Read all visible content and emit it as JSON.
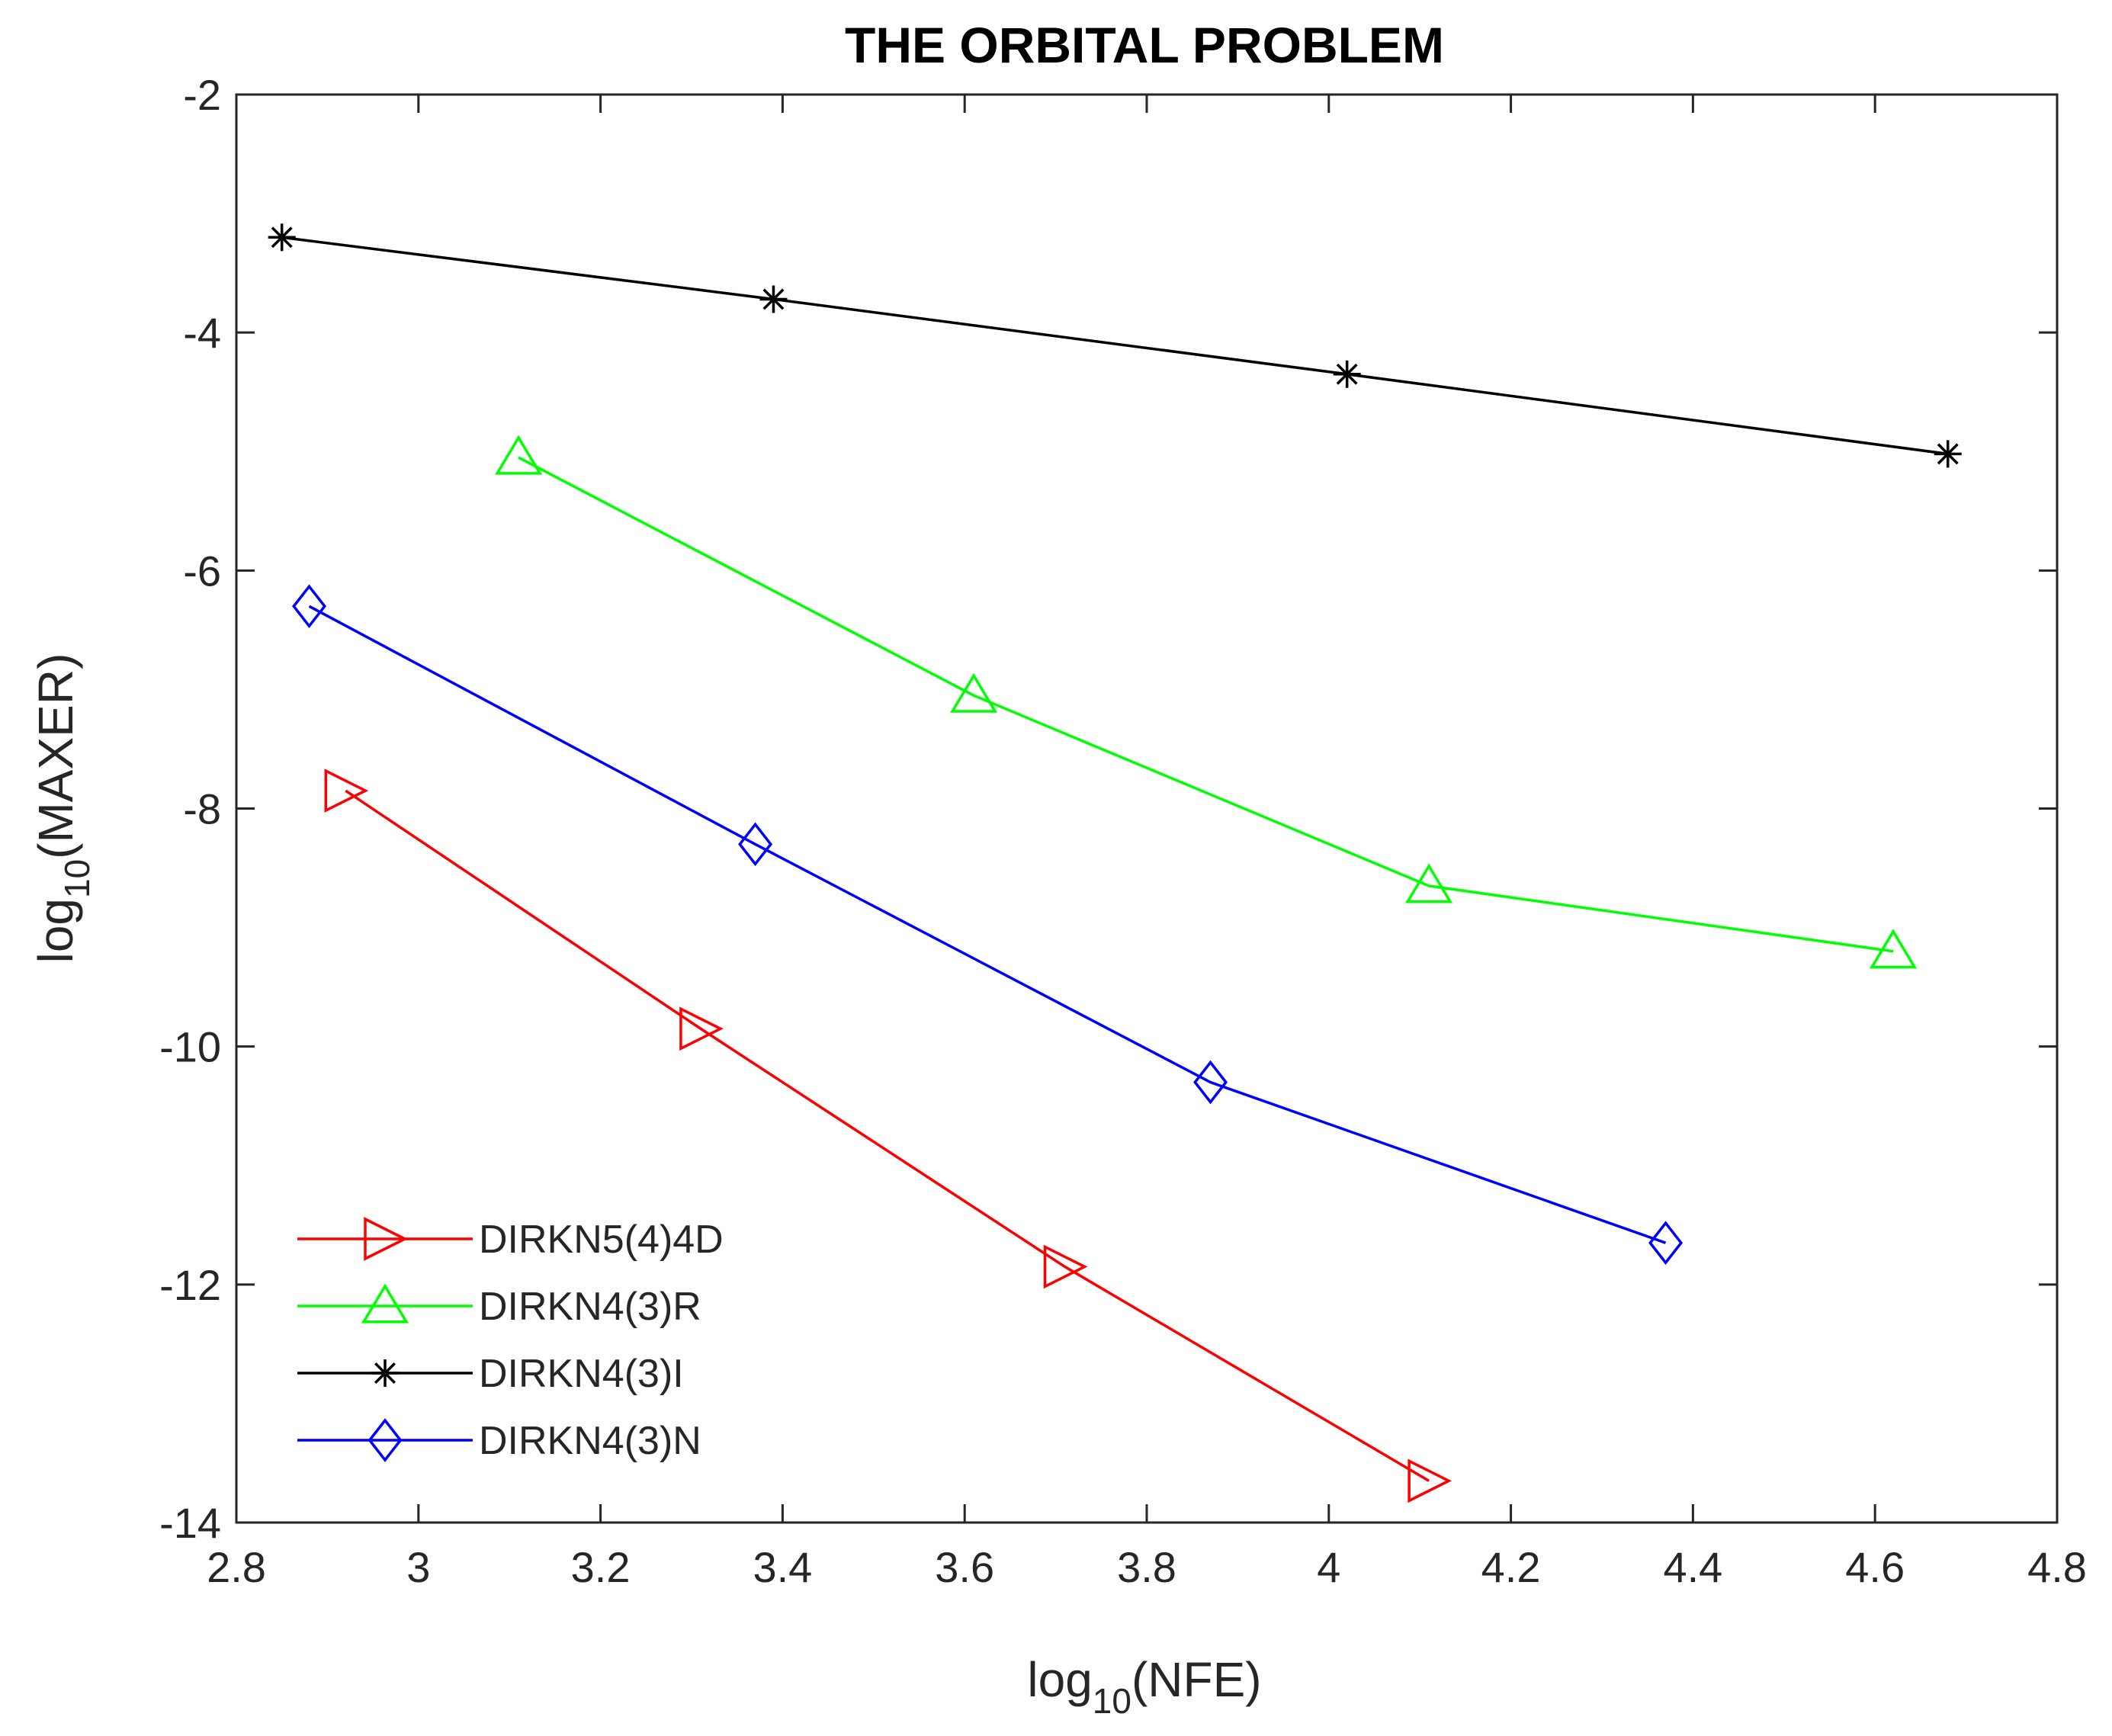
{
  "chart_data": {
    "type": "line",
    "title": "THE ORBITAL PROBLEM",
    "xlabel": {
      "base": "log",
      "sub": "10",
      "rest": "(NFE)"
    },
    "ylabel": {
      "base": "log",
      "sub": "10",
      "rest": "(MAXER)"
    },
    "xlim": [
      2.8,
      4.8
    ],
    "ylim": [
      -14,
      -2
    ],
    "xticks": [
      2.8,
      3.0,
      3.2,
      3.4,
      3.6,
      3.8,
      4.0,
      4.2,
      4.4,
      4.6,
      4.8
    ],
    "xtick_labels": [
      "2.8",
      "3",
      "3.2",
      "3.4",
      "3.6",
      "3.8",
      "4",
      "4.2",
      "4.4",
      "4.6",
      "4.8"
    ],
    "yticks": [
      -2,
      -4,
      -6,
      -8,
      -10,
      -12,
      -14
    ],
    "ytick_labels": [
      "-2",
      "-4",
      "-6",
      "-8",
      "-10",
      "-12",
      "-14"
    ],
    "grid": false,
    "legend_position": "bottom-left",
    "series": [
      {
        "name": "DIRKN5(4)4D",
        "color": "#ff0000",
        "marker": "triangle-right",
        "x": [
          2.92,
          3.31,
          3.71,
          4.11
        ],
        "y": [
          -7.85,
          -9.85,
          -11.85,
          -13.65
        ]
      },
      {
        "name": "DIRKN4(3)R",
        "color": "#00ff00",
        "marker": "triangle-up",
        "x": [
          3.11,
          3.61,
          4.11,
          4.62
        ],
        "y": [
          -5.05,
          -7.05,
          -8.65,
          -9.2
        ]
      },
      {
        "name": "DIRKN4(3)I",
        "color": "#000000",
        "marker": "asterisk",
        "x": [
          2.85,
          3.39,
          4.02,
          4.68
        ],
        "y": [
          -3.2,
          -3.72,
          -4.35,
          -5.02
        ]
      },
      {
        "name": "DIRKN4(3)N",
        "color": "#0000ff",
        "marker": "diamond",
        "x": [
          2.88,
          3.37,
          3.87,
          4.37
        ],
        "y": [
          -6.3,
          -8.3,
          -10.3,
          -11.65
        ]
      }
    ]
  }
}
